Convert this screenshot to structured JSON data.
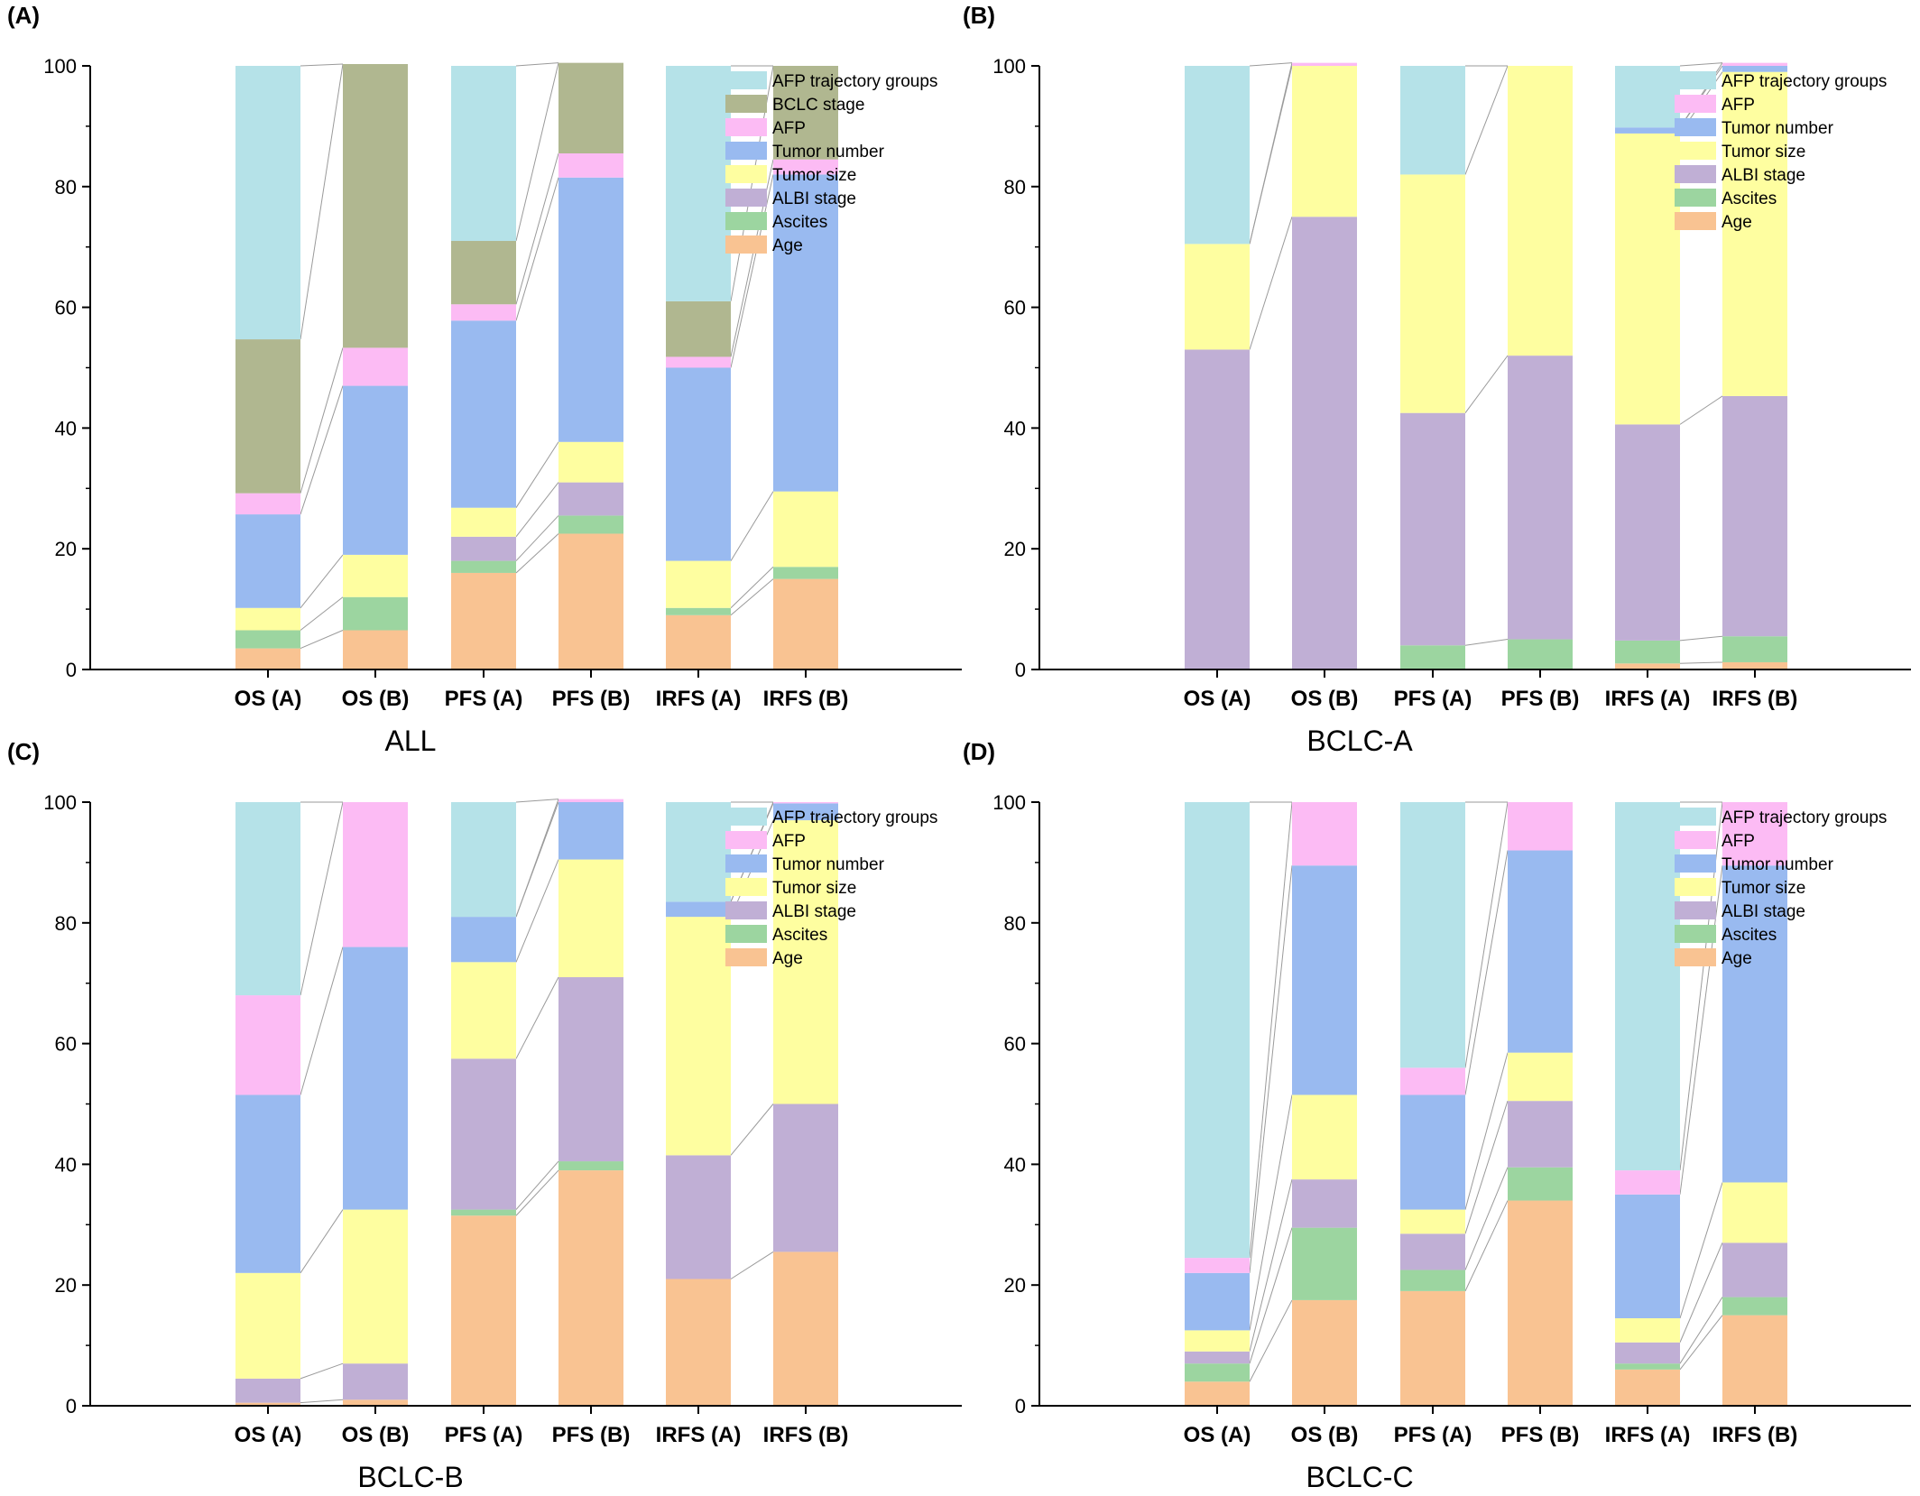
{
  "chart_data": [
    {
      "type": "bar",
      "stacked": true,
      "panel_label": "(A)",
      "title": "ALL",
      "categories": [
        "OS (A)",
        "OS (B)",
        "PFS (A)",
        "PFS (B)",
        "IRFS (A)",
        "IRFS (B)"
      ],
      "ylim": [
        0,
        100
      ],
      "yticks": [
        0,
        20,
        40,
        60,
        80,
        100
      ],
      "legend_position": "top-right",
      "series": [
        {
          "name": "Age",
          "color": "#F9C392",
          "values": [
            3.5,
            6.5,
            16,
            22.5,
            9,
            15
          ]
        },
        {
          "name": "Ascites",
          "color": "#9CD5A0",
          "values": [
            3,
            5.5,
            2,
            3,
            1.2,
            2
          ]
        },
        {
          "name": "ALBI stage",
          "color": "#C0AFD5",
          "values": [
            0,
            0,
            4,
            5.5,
            0,
            0
          ]
        },
        {
          "name": "Tumor size",
          "color": "#FEFEA0",
          "values": [
            3.7,
            7,
            4.8,
            6.7,
            7.8,
            12.5
          ]
        },
        {
          "name": "Tumor number",
          "color": "#99BAF0",
          "values": [
            15.5,
            28,
            31,
            43.8,
            32,
            52.5
          ]
        },
        {
          "name": "AFP",
          "color": "#FCBBF4",
          "values": [
            3.5,
            6.3,
            2.7,
            4,
            1.8,
            2.5
          ]
        },
        {
          "name": "BCLC stage",
          "color": "#B0B790",
          "values": [
            25.5,
            47,
            10.5,
            15,
            9.2,
            15.5
          ]
        },
        {
          "name": "AFP trajectory groups",
          "color": "#B5E2E8",
          "values": [
            45.3,
            0,
            29,
            0,
            39,
            0
          ]
        }
      ],
      "legend_order": [
        "AFP trajectory groups",
        "BCLC stage",
        "AFP",
        "Tumor number",
        "Tumor size",
        "ALBI stage",
        "Ascites",
        "Age"
      ]
    },
    {
      "type": "bar",
      "stacked": true,
      "panel_label": "(B)",
      "title": "BCLC-A",
      "categories": [
        "OS (A)",
        "OS (B)",
        "PFS (A)",
        "PFS (B)",
        "IRFS (A)",
        "IRFS (B)"
      ],
      "ylim": [
        0,
        100
      ],
      "yticks": [
        0,
        20,
        40,
        60,
        80,
        100
      ],
      "legend_position": "top-right",
      "series": [
        {
          "name": "Age",
          "color": "#F9C392",
          "values": [
            0,
            0,
            0,
            0,
            1,
            1.2
          ]
        },
        {
          "name": "Ascites",
          "color": "#9CD5A0",
          "values": [
            0,
            0,
            4,
            5,
            3.8,
            4.3
          ]
        },
        {
          "name": "ALBI stage",
          "color": "#C0AFD5",
          "values": [
            53,
            75,
            38.5,
            47,
            35.8,
            39.8
          ]
        },
        {
          "name": "Tumor size",
          "color": "#FEFEA0",
          "values": [
            17.5,
            25,
            39.5,
            48,
            48.2,
            53.7
          ]
        },
        {
          "name": "Tumor number",
          "color": "#99BAF0",
          "values": [
            0,
            0,
            0,
            0,
            1,
            1
          ]
        },
        {
          "name": "AFP",
          "color": "#FCBBF4",
          "values": [
            0,
            0.5,
            0,
            0,
            0,
            0.5
          ]
        },
        {
          "name": "AFP trajectory groups",
          "color": "#B5E2E8",
          "values": [
            29.5,
            0,
            18,
            0,
            10.2,
            0
          ]
        }
      ],
      "legend_order": [
        "AFP trajectory groups",
        "AFP",
        "Tumor number",
        "Tumor size",
        "ALBI stage",
        "Ascites",
        "Age"
      ]
    },
    {
      "type": "bar",
      "stacked": true,
      "panel_label": "(C)",
      "title": "BCLC-B",
      "categories": [
        "OS (A)",
        "OS (B)",
        "PFS (A)",
        "PFS (B)",
        "IRFS (A)",
        "IRFS (B)"
      ],
      "ylim": [
        0,
        100
      ],
      "yticks": [
        0,
        20,
        40,
        60,
        80,
        100
      ],
      "legend_position": "top-right",
      "series": [
        {
          "name": "Age",
          "color": "#F9C392",
          "values": [
            0.5,
            1,
            31.5,
            39,
            21,
            25.5
          ]
        },
        {
          "name": "Ascites",
          "color": "#9CD5A0",
          "values": [
            0,
            0,
            1,
            1.5,
            0,
            0
          ]
        },
        {
          "name": "ALBI stage",
          "color": "#C0AFD5",
          "values": [
            4,
            6,
            25,
            30.5,
            20.5,
            24.5
          ]
        },
        {
          "name": "Tumor size",
          "color": "#FEFEA0",
          "values": [
            17.5,
            25.5,
            16,
            19.5,
            39.5,
            47
          ]
        },
        {
          "name": "Tumor number",
          "color": "#99BAF0",
          "values": [
            29.5,
            43.5,
            7.5,
            9.5,
            2.5,
            2.8
          ]
        },
        {
          "name": "AFP",
          "color": "#FCBBF4",
          "values": [
            16.5,
            24,
            0,
            0.5,
            0,
            0.2
          ]
        },
        {
          "name": "AFP trajectory groups",
          "color": "#B5E2E8",
          "values": [
            32,
            0,
            19,
            0,
            16.5,
            0
          ]
        }
      ],
      "legend_order": [
        "AFP trajectory groups",
        "AFP",
        "Tumor number",
        "Tumor size",
        "ALBI stage",
        "Ascites",
        "Age"
      ]
    },
    {
      "type": "bar",
      "stacked": true,
      "panel_label": "(D)",
      "title": "BCLC-C",
      "categories": [
        "OS (A)",
        "OS (B)",
        "PFS (A)",
        "PFS (B)",
        "IRFS (A)",
        "IRFS (B)"
      ],
      "ylim": [
        0,
        100
      ],
      "yticks": [
        0,
        20,
        40,
        60,
        80,
        100
      ],
      "legend_position": "top-right",
      "series": [
        {
          "name": "Age",
          "color": "#F9C392",
          "values": [
            4,
            17.5,
            19,
            34,
            6,
            15
          ]
        },
        {
          "name": "Ascites",
          "color": "#9CD5A0",
          "values": [
            3,
            12,
            3.5,
            5.5,
            1,
            3
          ]
        },
        {
          "name": "ALBI stage",
          "color": "#C0AFD5",
          "values": [
            2,
            8,
            6,
            11,
            3.5,
            9
          ]
        },
        {
          "name": "Tumor size",
          "color": "#FEFEA0",
          "values": [
            3.5,
            14,
            4,
            8,
            4,
            10
          ]
        },
        {
          "name": "Tumor number",
          "color": "#99BAF0",
          "values": [
            9.5,
            38,
            19,
            33.5,
            20.5,
            52.5
          ]
        },
        {
          "name": "AFP",
          "color": "#FCBBF4",
          "values": [
            2.5,
            10.5,
            4.5,
            8,
            4,
            10.5
          ]
        },
        {
          "name": "AFP trajectory groups",
          "color": "#B5E2E8",
          "values": [
            75.5,
            0,
            44,
            0,
            61,
            0
          ]
        }
      ],
      "legend_order": [
        "AFP trajectory groups",
        "AFP",
        "Tumor number",
        "Tumor size",
        "ALBI stage",
        "Ascites",
        "Age"
      ]
    }
  ]
}
